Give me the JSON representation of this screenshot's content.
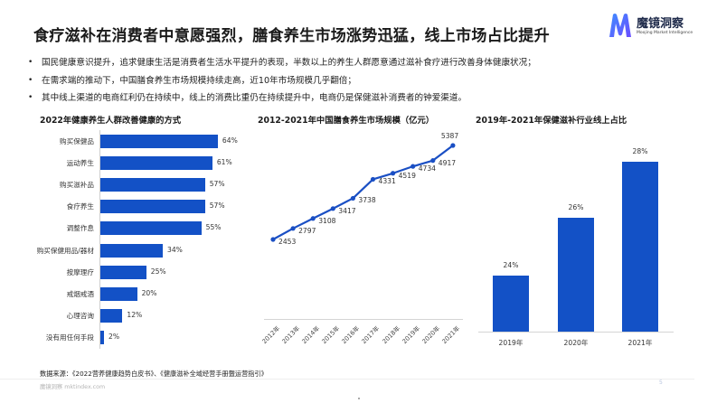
{
  "header": {
    "title": "食疗滋补在消费者中意愿强烈，膳食养生市场涨势迅猛，线上市场占比提升",
    "logo": {
      "name_cn": "魔镜洞察",
      "name_en": "Moojing Market Intelligence",
      "icon": "logo-m-icon"
    }
  },
  "bullets": [
    "国民健康意识提升，追求健康生活是消费者生活水平提升的表现，半数以上的养生人群愿意通过滋补食疗进行改善身体健康状况；",
    "在需求端的推动下，中国膳食养生市场规模持续走高，近10年市场规模几乎翻倍；",
    "其中线上渠道的电商红利仍在持续中，线上的消费比重仍在持续提升中，电商仍是保健滋补消费者的钟爱渠道。"
  ],
  "colors": {
    "bar": "#1351c6",
    "line": "#1a4fc4"
  },
  "chart_data": [
    {
      "type": "bar",
      "orientation": "horizontal",
      "title": "2022年健康养生人群改善健康的方式",
      "categories": [
        "购买保健品",
        "运动养生",
        "购买滋补品",
        "食疗养生",
        "调整作息",
        "购买保健用品/器材",
        "按摩理疗",
        "戒烟戒酒",
        "心理咨询",
        "没有用任何手段"
      ],
      "values": [
        64,
        61,
        57,
        57,
        55,
        34,
        25,
        20,
        12,
        2
      ],
      "value_labels": [
        "64%",
        "61%",
        "57%",
        "57%",
        "55%",
        "34%",
        "25%",
        "20%",
        "12%",
        "2%"
      ],
      "xlabel": "",
      "ylabel": "",
      "unit": "%",
      "grid": false
    },
    {
      "type": "line",
      "title": "2012-2021年中国膳食养生市场规模（亿元）",
      "categories": [
        "2012年",
        "2013年",
        "2014年",
        "2015年",
        "2016年",
        "2017年",
        "2018年",
        "2019年",
        "2020年",
        "2021年"
      ],
      "values": [
        2453,
        2797,
        3108,
        3417,
        3738,
        4331,
        4519,
        4734,
        4917,
        5387
      ],
      "value_labels": [
        "2453",
        "2797",
        "3108",
        "3417",
        "3738",
        "4331",
        "4519",
        "4734",
        "4917",
        "5387"
      ],
      "xlabel": "",
      "ylabel": "亿元",
      "grid": false
    },
    {
      "type": "bar",
      "orientation": "vertical",
      "title": "2019年-2021年保健滋补行业线上占比",
      "categories": [
        "2019年",
        "2020年",
        "2021年"
      ],
      "values": [
        24,
        26,
        28
      ],
      "value_labels": [
        "24%",
        "26%",
        "28%"
      ],
      "xlabel": "",
      "ylabel": "",
      "unit": "%",
      "grid": false
    }
  ],
  "footer": {
    "source": "数据来源：《2022营养健康趋势白皮书》、《健康滋补全域经营手册暨运营指引》",
    "site": "魔镜洞察 mktindex.com",
    "page_number": "5"
  }
}
